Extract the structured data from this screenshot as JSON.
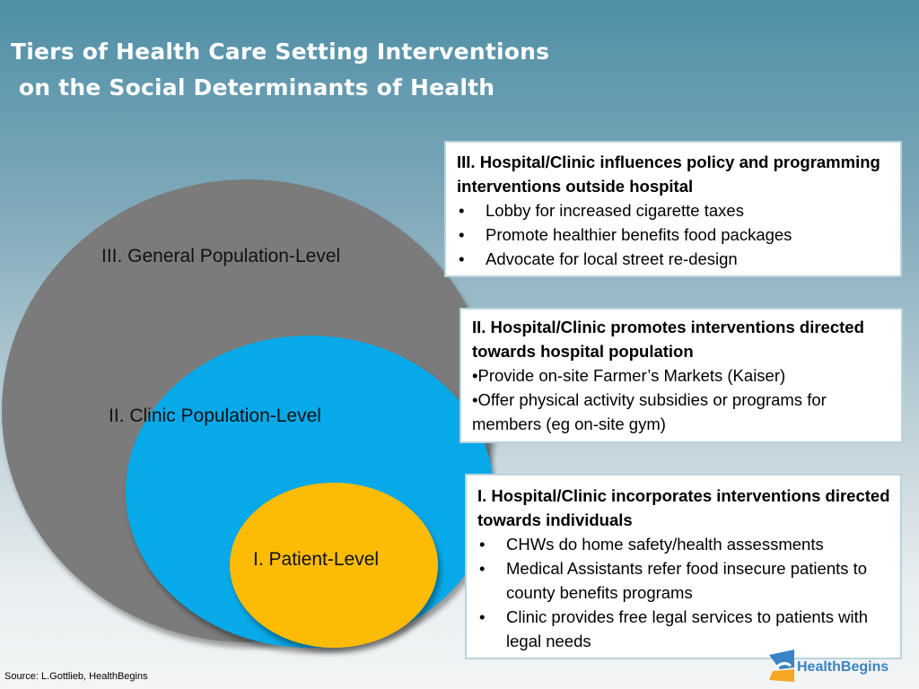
{
  "title": {
    "line1": "Tiers of Health Care Setting Interventions",
    "line2": " on the Social Determinants of Health"
  },
  "circles": {
    "general": "III. General Population-Level",
    "clinic": "II. Clinic Population-Level",
    "patient": "I. Patient-Level"
  },
  "colors": {
    "general": "#7b7b7b",
    "clinic": "#08a9e8",
    "patient": "#fcbc06"
  },
  "boxes": {
    "tier3": {
      "heading": "III. Hospital/Clinic influences policy and programming interventions outside hospital",
      "items": [
        "Lobby for increased cigarette taxes",
        "Promote healthier benefits food packages",
        "Advocate for local street re-design"
      ]
    },
    "tier2": {
      "heading": "II. Hospital/Clinic promotes interventions directed towards hospital population",
      "items": [
        "•Provide on-site Farmer’s Markets (Kaiser)",
        "•Offer physical activity subsidies or programs for members (eg on-site gym)"
      ]
    },
    "tier1": {
      "heading": "I. Hospital/Clinic incorporates interventions directed towards individuals",
      "items": [
        "CHWs do home safety/health assessments",
        "Medical Assistants refer food insecure patients to county benefits programs",
        "Clinic provides free legal services to patients with legal needs"
      ]
    }
  },
  "source": "Source: L.Gottlieb, HealthBegins",
  "logo": {
    "part1": "Health",
    "part2": "Begins"
  }
}
